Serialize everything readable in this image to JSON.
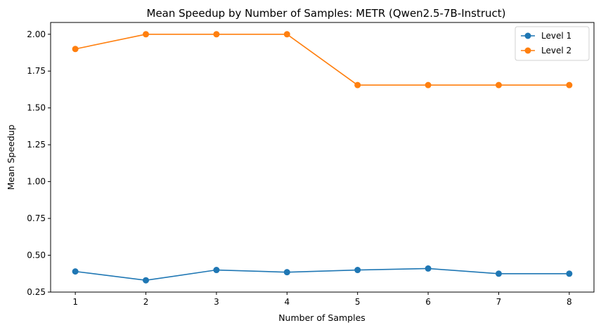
{
  "chart_data": {
    "type": "line",
    "title": "Mean Speedup by Number of Samples: METR (Qwen2.5-7B-Instruct)",
    "xlabel": "Number of Samples",
    "ylabel": "Mean Speedup",
    "x": [
      1,
      2,
      3,
      4,
      5,
      6,
      7,
      8
    ],
    "xticks": [
      "1",
      "2",
      "3",
      "4",
      "5",
      "6",
      "7",
      "8"
    ],
    "yticks": [
      "0.25",
      "0.50",
      "0.75",
      "1.00",
      "1.25",
      "1.50",
      "1.75",
      "2.00"
    ],
    "xlim": [
      0.65,
      8.35
    ],
    "ylim": [
      0.25,
      2.08
    ],
    "grid": false,
    "legend_position": "top-right",
    "series": [
      {
        "name": "Level 1",
        "color": "#1f77b4",
        "values": [
          0.39,
          0.33,
          0.4,
          0.385,
          0.4,
          0.41,
          0.375,
          0.375
        ]
      },
      {
        "name": "Level 2",
        "color": "#ff7f0e",
        "values": [
          1.9,
          2.0,
          2.0,
          2.0,
          1.655,
          1.655,
          1.655,
          1.655
        ]
      }
    ]
  }
}
